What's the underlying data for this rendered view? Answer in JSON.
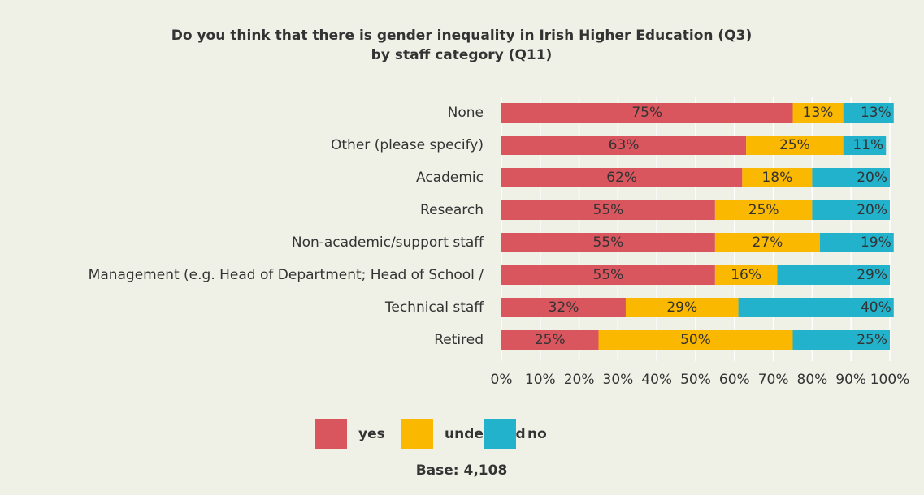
{
  "chart_data": {
    "type": "stacked-barh",
    "title": [
      "Do you think that there is gender inequality in Irish Higher Education (Q3)",
      "by staff category (Q11)"
    ],
    "categories": [
      "None",
      "Other (please specify)",
      "Academic",
      "Research",
      "Non-academic/support staff",
      "Management (e.g. Head of Department; Head of School /",
      "Technical staff",
      "Retired"
    ],
    "series": [
      {
        "name": "yes",
        "color": "#d9565f",
        "values": [
          75,
          63,
          62,
          55,
          55,
          55,
          32,
          25
        ],
        "value_labels": [
          "75%",
          "63%",
          "62%",
          "55%",
          "55%",
          "55%",
          "32%",
          "25%"
        ]
      },
      {
        "name": "undecided",
        "color": "#fbb800",
        "values": [
          13,
          25,
          18,
          25,
          27,
          16,
          29,
          50
        ],
        "value_labels": [
          "13%",
          "25%",
          "18%",
          "25%",
          "27%",
          "16%",
          "29%",
          "50%"
        ]
      },
      {
        "name": "no",
        "color": "#22b2cc",
        "values": [
          13,
          11,
          20,
          20,
          19,
          29,
          40,
          25
        ],
        "value_labels": [
          "13%",
          "11%",
          "20%",
          "20%",
          "19%",
          "29%",
          "40%",
          "25%"
        ]
      }
    ],
    "xlim": [
      0,
      100
    ],
    "xticks": [
      {
        "value": 0,
        "label": "0%"
      },
      {
        "value": 10,
        "label": "10%"
      },
      {
        "value": 20,
        "label": "20%"
      },
      {
        "value": 30,
        "label": "30%"
      },
      {
        "value": 40,
        "label": "40%"
      },
      {
        "value": 50,
        "label": "50%"
      },
      {
        "value": 60,
        "label": "60%"
      },
      {
        "value": 70,
        "label": "70%"
      },
      {
        "value": 80,
        "label": "80%"
      },
      {
        "value": 90,
        "label": "90%"
      },
      {
        "value": 100,
        "label": "100%"
      }
    ],
    "grid": true,
    "note": "Base: 4,108"
  }
}
